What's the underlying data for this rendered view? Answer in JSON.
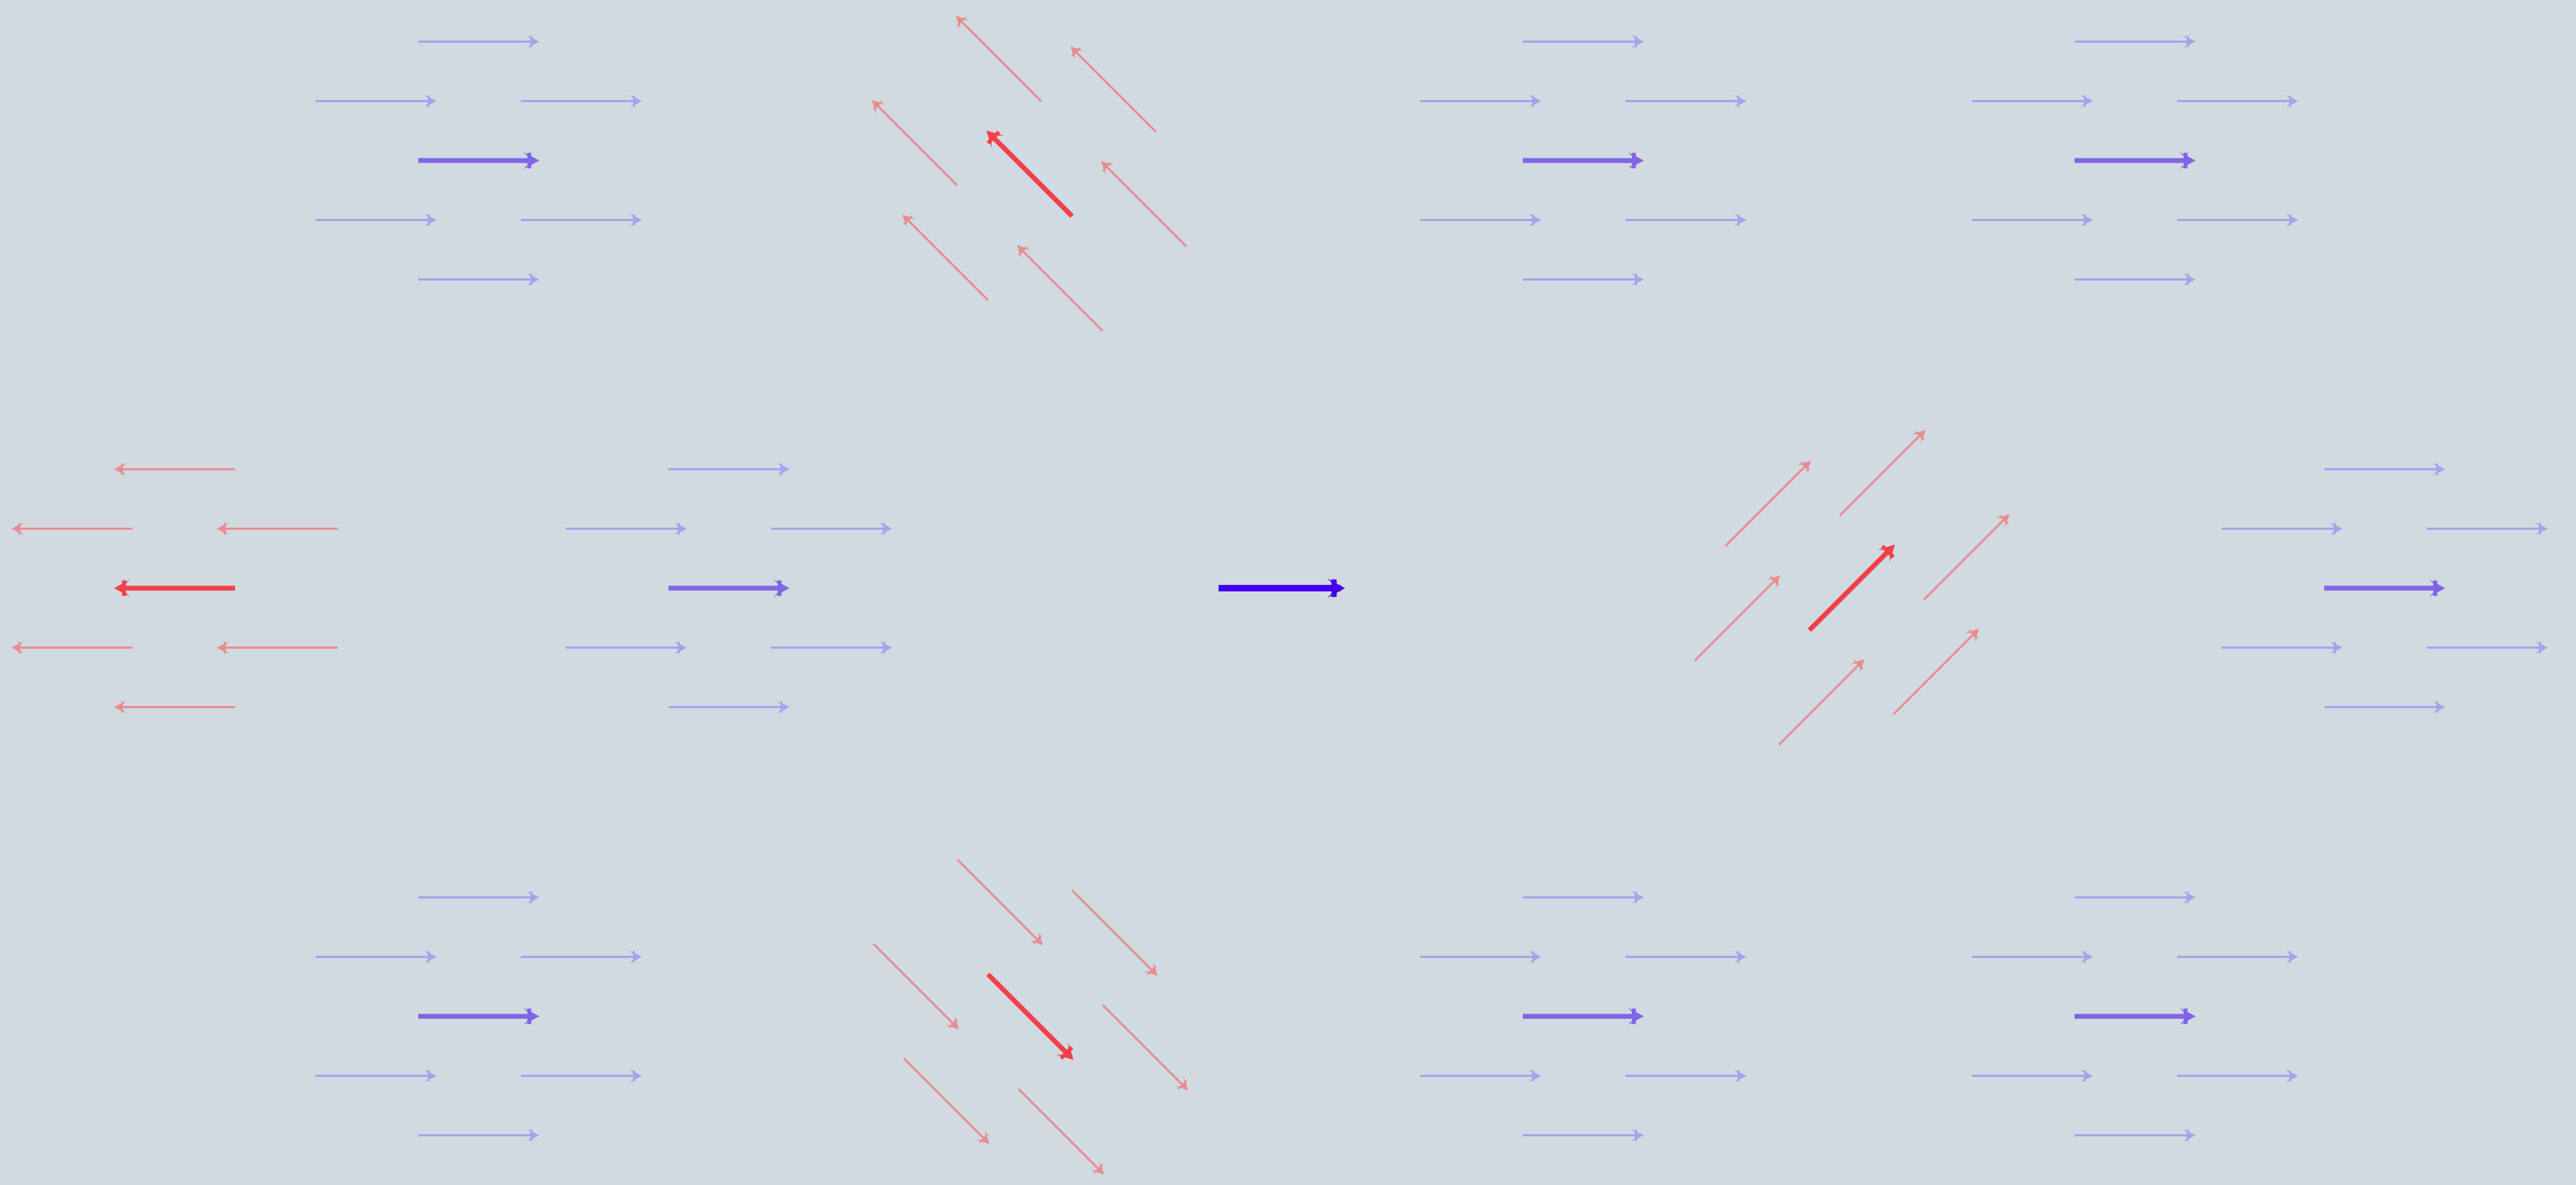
{
  "canvas": {
    "background": "#d0dae0"
  },
  "colors": {
    "center_arrow": "#4400ee",
    "blue_main": "#8066e6",
    "blue_faint": "#a6a2ea",
    "red_main": "#f2404a",
    "red_faint": "#e88c92"
  },
  "center": {
    "name": "center-arrow",
    "direction_deg": 0
  },
  "clusters": [
    {
      "name": "cluster-top-left",
      "color": "blue",
      "direction_deg": 0
    },
    {
      "name": "cluster-top-second",
      "color": "red",
      "direction_deg": 225
    },
    {
      "name": "cluster-top-third",
      "color": "blue",
      "direction_deg": 0
    },
    {
      "name": "cluster-top-right",
      "color": "blue",
      "direction_deg": 0
    },
    {
      "name": "cluster-middle-far-left",
      "color": "red",
      "direction_deg": 180
    },
    {
      "name": "cluster-middle-left",
      "color": "blue",
      "direction_deg": 0
    },
    {
      "name": "cluster-middle-right",
      "color": "red",
      "direction_deg": 315
    },
    {
      "name": "cluster-middle-far-right",
      "color": "blue",
      "direction_deg": 0
    },
    {
      "name": "cluster-bottom-left",
      "color": "blue",
      "direction_deg": 0
    },
    {
      "name": "cluster-bottom-second",
      "color": "red",
      "direction_deg": 45
    },
    {
      "name": "cluster-bottom-third",
      "color": "blue",
      "direction_deg": 0
    },
    {
      "name": "cluster-bottom-right",
      "color": "blue",
      "direction_deg": 0
    }
  ]
}
